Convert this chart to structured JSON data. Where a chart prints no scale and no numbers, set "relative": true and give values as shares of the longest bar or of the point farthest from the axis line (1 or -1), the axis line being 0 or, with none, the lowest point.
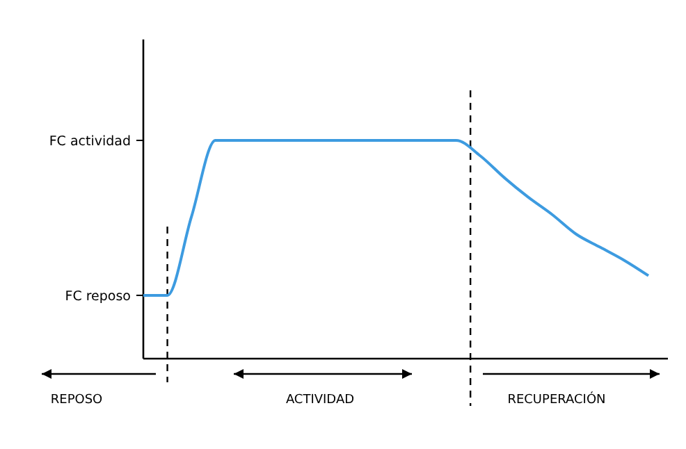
{
  "chart_data": {
    "type": "line",
    "relative": true,
    "categories": [
      null,
      null,
      null,
      null,
      null,
      null,
      null,
      null,
      null,
      null,
      null,
      null,
      null,
      null,
      null,
      null,
      null,
      null,
      null,
      null,
      null,
      null
    ],
    "series": [
      {
        "color": "#3d9be0",
        "values": [
          0.29,
          0.29,
          0.65,
          1,
          1,
          1,
          1,
          1,
          1,
          1,
          1,
          1,
          1,
          1,
          0.93,
          0.83,
          0.74,
          0.66,
          0.57,
          0.51,
          0.45,
          0.38
        ]
      }
    ],
    "line_style": "solid",
    "annotations": [
      "FC reposo",
      "FC actividad",
      "REPOSO",
      "ACTIVIDAD",
      "RECUPERACIÓN"
    ]
  }
}
